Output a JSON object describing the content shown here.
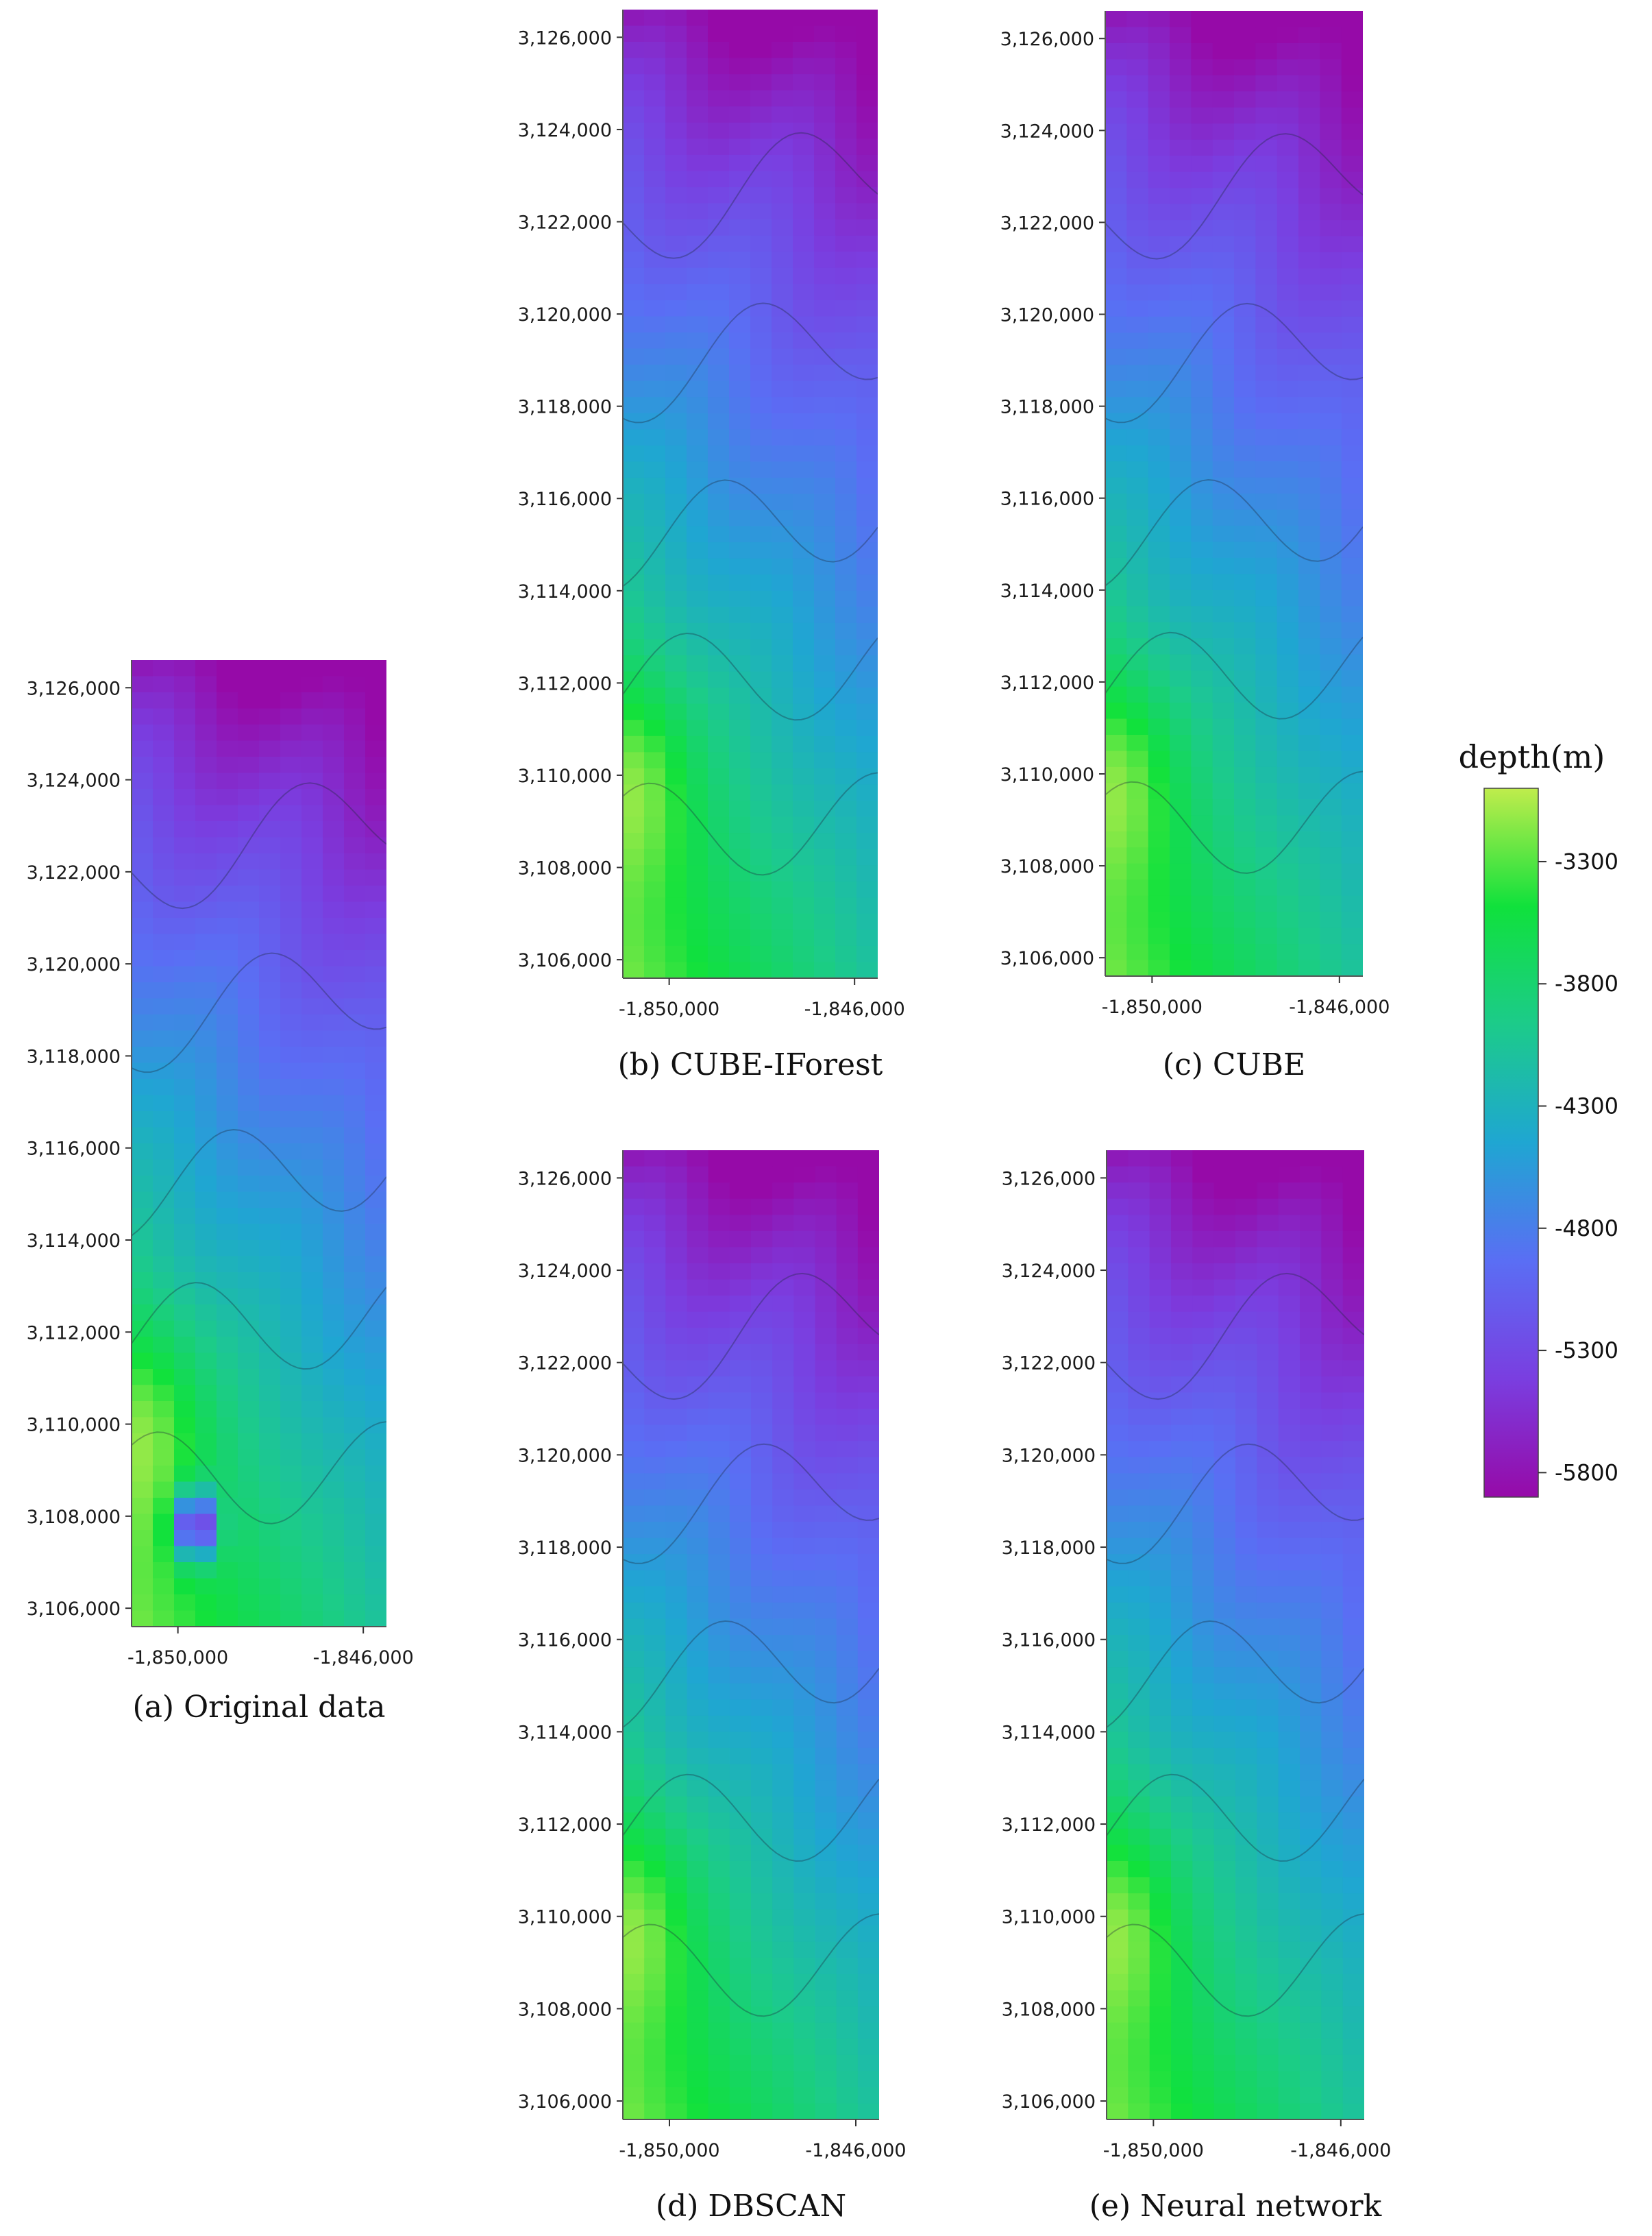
{
  "figure": {
    "panels": [
      {
        "id": "a",
        "caption": "(a) Original data"
      },
      {
        "id": "b",
        "caption": "(b) CUBE-IForest"
      },
      {
        "id": "c",
        "caption": "(c) CUBE"
      },
      {
        "id": "d",
        "caption": "(d) DBSCAN"
      },
      {
        "id": "e",
        "caption": "(e) Neural network"
      }
    ],
    "colorbar": {
      "title": "depth(m)",
      "ticks": [
        "-3300",
        "-3800",
        "-4300",
        "-4800",
        "-5300",
        "-5800"
      ],
      "tick_values": [
        -3300,
        -3800,
        -4300,
        -4800,
        -5300,
        -5800
      ],
      "range": [
        -5900,
        -3000
      ],
      "colors": [
        "#c0ec4c",
        "#10e13c",
        "#1ccb8a",
        "#1fa6d2",
        "#5a6ef4",
        "#7a3ee0",
        "#960aa8"
      ]
    }
  },
  "chart_data": [
    {
      "type": "heatmap",
      "title": "(a) Original data",
      "xlabel": "",
      "ylabel": "",
      "x_ticks": [
        "-1,850,000",
        "-1,846,000"
      ],
      "x_tick_values": [
        -1850000,
        -1846000
      ],
      "y_ticks": [
        "3,106,000",
        "3,108,000",
        "3,110,000",
        "3,112,000",
        "3,114,000",
        "3,116,000",
        "3,118,000",
        "3,120,000",
        "3,122,000",
        "3,124,000",
        "3,126,000"
      ],
      "y_tick_values": [
        3106000,
        3108000,
        3110000,
        3112000,
        3114000,
        3116000,
        3118000,
        3120000,
        3122000,
        3124000,
        3126000
      ],
      "xlim": [
        -1851000,
        -1845500
      ],
      "ylim": [
        3105600,
        3126600
      ],
      "zlim": [
        -5900,
        -3000
      ],
      "z_label": "depth(m)",
      "features": [
        "deep basin at north edge (~-5800 m)",
        "shallow bank on west side near 3,110,000 (~-3300 m)",
        "artifact depression near 3,108,000"
      ]
    },
    {
      "type": "heatmap",
      "title": "(b) CUBE-IForest",
      "xlabel": "",
      "ylabel": "",
      "x_ticks": [
        "-1,850,000",
        "-1,846,000"
      ],
      "x_tick_values": [
        -1850000,
        -1846000
      ],
      "y_ticks": [
        "3,106,000",
        "3,108,000",
        "3,110,000",
        "3,112,000",
        "3,114,000",
        "3,116,000",
        "3,118,000",
        "3,120,000",
        "3,122,000",
        "3,124,000",
        "3,126,000"
      ],
      "y_tick_values": [
        3106000,
        3108000,
        3110000,
        3112000,
        3114000,
        3116000,
        3118000,
        3120000,
        3122000,
        3124000,
        3126000
      ],
      "xlim": [
        -1851000,
        -1845500
      ],
      "ylim": [
        3105600,
        3126600
      ],
      "zlim": [
        -5900,
        -3000
      ],
      "z_label": "depth(m)"
    },
    {
      "type": "heatmap",
      "title": "(c) CUBE",
      "xlabel": "",
      "ylabel": "",
      "x_ticks": [
        "-1,850,000",
        "-1,846,000"
      ],
      "x_tick_values": [
        -1850000,
        -1846000
      ],
      "y_ticks": [
        "3,106,000",
        "3,108,000",
        "3,110,000",
        "3,112,000",
        "3,114,000",
        "3,116,000",
        "3,118,000",
        "3,120,000",
        "3,122,000",
        "3,124,000",
        "3,126,000"
      ],
      "y_tick_values": [
        3106000,
        3108000,
        3110000,
        3112000,
        3114000,
        3116000,
        3118000,
        3120000,
        3122000,
        3124000,
        3126000
      ],
      "xlim": [
        -1851000,
        -1845500
      ],
      "ylim": [
        3105600,
        3126600
      ],
      "zlim": [
        -5900,
        -3000
      ],
      "z_label": "depth(m)"
    },
    {
      "type": "heatmap",
      "title": "(d) DBSCAN",
      "xlabel": "",
      "ylabel": "",
      "x_ticks": [
        "-1,850,000",
        "-1,846,000"
      ],
      "x_tick_values": [
        -1850000,
        -1846000
      ],
      "y_ticks": [
        "3,106,000",
        "3,108,000",
        "3,110,000",
        "3,112,000",
        "3,114,000",
        "3,116,000",
        "3,118,000",
        "3,120,000",
        "3,122,000",
        "3,124,000",
        "3,126,000"
      ],
      "y_tick_values": [
        3106000,
        3108000,
        3110000,
        3112000,
        3114000,
        3116000,
        3118000,
        3120000,
        3122000,
        3124000,
        3126000
      ],
      "xlim": [
        -1851000,
        -1845500
      ],
      "ylim": [
        3105600,
        3126600
      ],
      "zlim": [
        -5900,
        -3000
      ],
      "z_label": "depth(m)"
    },
    {
      "type": "heatmap",
      "title": "(e) Neural network",
      "xlabel": "",
      "ylabel": "",
      "x_ticks": [
        "-1,850,000",
        "-1,846,000"
      ],
      "x_tick_values": [
        -1850000,
        -1846000
      ],
      "y_ticks": [
        "3,106,000",
        "3,108,000",
        "3,110,000",
        "3,112,000",
        "3,114,000",
        "3,116,000",
        "3,118,000",
        "3,120,000",
        "3,122,000",
        "3,124,000",
        "3,126,000"
      ],
      "y_tick_values": [
        3106000,
        3108000,
        3110000,
        3112000,
        3114000,
        3116000,
        3118000,
        3120000,
        3122000,
        3124000,
        3126000
      ],
      "xlim": [
        -1851000,
        -1845500
      ],
      "ylim": [
        3105600,
        3126600
      ],
      "zlim": [
        -5900,
        -3000
      ],
      "z_label": "depth(m)"
    }
  ]
}
